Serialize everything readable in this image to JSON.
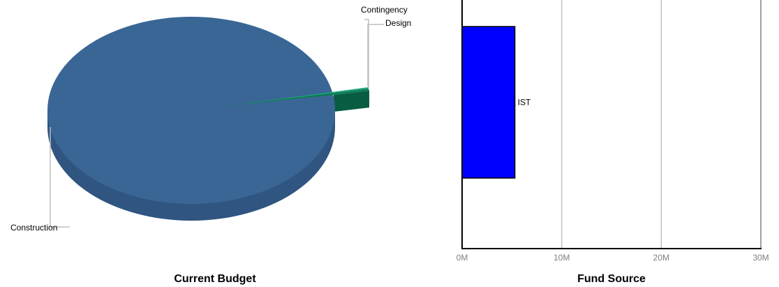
{
  "chart_data": [
    {
      "type": "pie",
      "title": "Current Budget",
      "categories": [
        "Construction",
        "Contingency",
        "Design"
      ],
      "values": [
        98.2,
        1.5,
        0.3
      ],
      "colors": {
        "Construction": "#3a6696",
        "Contingency": "#0f7a58",
        "Design": "#1aa67a"
      },
      "style": "3d",
      "legend": "none"
    },
    {
      "type": "bar",
      "orientation": "horizontal",
      "title": "Fund Source",
      "categories": [
        "IST"
      ],
      "values": [
        5300000
      ],
      "xlim": [
        0,
        30000000
      ],
      "tick_labels": [
        "0M",
        "10M",
        "20M",
        "30M"
      ],
      "grid": true,
      "colors": {
        "bar": "#0000ff"
      }
    }
  ]
}
